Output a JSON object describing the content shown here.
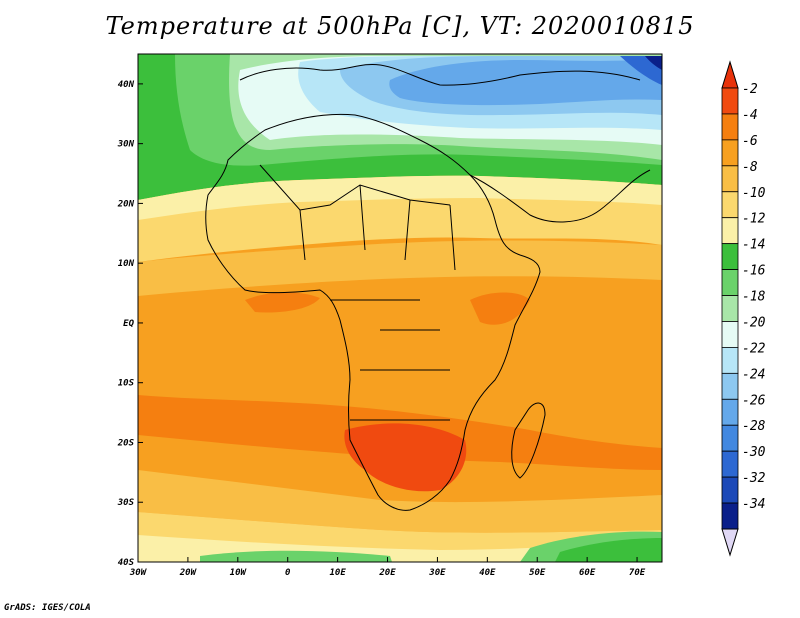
{
  "title": "Temperature at 500hPa [C], VT: 2020010815",
  "credit": "GrADS: IGES/COLA",
  "map": {
    "lon_range": [
      -30,
      75
    ],
    "lat_range": [
      -40,
      45
    ],
    "lat_ticks": [
      {
        "v": 40,
        "label": "40N"
      },
      {
        "v": 30,
        "label": "30N"
      },
      {
        "v": 20,
        "label": "20N"
      },
      {
        "v": 10,
        "label": "10N"
      },
      {
        "v": 0,
        "label": "EQ"
      },
      {
        "v": -10,
        "label": "10S"
      },
      {
        "v": -20,
        "label": "20S"
      },
      {
        "v": -30,
        "label": "30S"
      },
      {
        "v": -40,
        "label": "40S"
      }
    ],
    "lon_ticks": [
      {
        "v": -30,
        "label": "30W"
      },
      {
        "v": -20,
        "label": "20W"
      },
      {
        "v": -10,
        "label": "10W"
      },
      {
        "v": 0,
        "label": "0"
      },
      {
        "v": 10,
        "label": "10E"
      },
      {
        "v": 20,
        "label": "20E"
      },
      {
        "v": 30,
        "label": "30E"
      },
      {
        "v": 40,
        "label": "40E"
      },
      {
        "v": 50,
        "label": "50E"
      },
      {
        "v": 60,
        "label": "60E"
      },
      {
        "v": 70,
        "label": "70E"
      }
    ]
  },
  "colorbar": {
    "labels": [
      "-2",
      "-4",
      "-6",
      "-8",
      "-10",
      "-12",
      "-14",
      "-16",
      "-18",
      "-20",
      "-22",
      "-24",
      "-26",
      "-28",
      "-30",
      "-32",
      "-34"
    ],
    "colors": [
      "#f04a10",
      "#f57f10",
      "#f7a020",
      "#f9be45",
      "#fbd86e",
      "#fbf0a8",
      "#3cbf3c",
      "#6ad26a",
      "#a8e6a8",
      "#e6fbf5",
      "#b7e6f7",
      "#8dc8f0",
      "#64a8ea",
      "#4288e0",
      "#2d68d2",
      "#1c49b8",
      "#0a1f8a"
    ],
    "top_arrow_color": "#e8320a",
    "bottom_arrow_color": "#e0d8f5"
  }
}
